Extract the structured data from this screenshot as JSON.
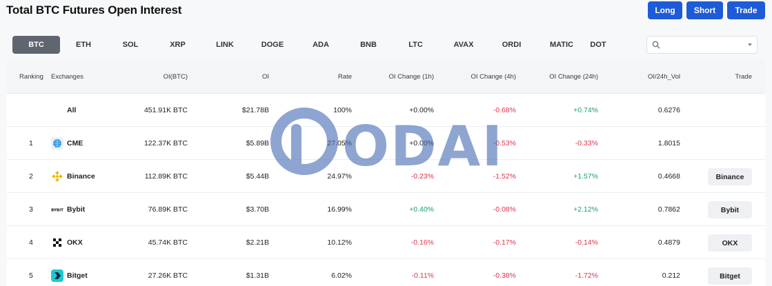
{
  "header": {
    "title": "Total BTC Futures Open Interest",
    "buttons": {
      "long": "Long",
      "short": "Short",
      "trade": "Trade"
    },
    "accent_color": "#1e5bd8"
  },
  "coin_tabs": [
    {
      "label": "BTC",
      "active": true
    },
    {
      "label": "ETH"
    },
    {
      "label": "SOL"
    },
    {
      "label": "XRP"
    },
    {
      "label": "LINK"
    },
    {
      "label": "DOGE"
    },
    {
      "label": "ADA"
    },
    {
      "label": "BNB"
    },
    {
      "label": "LTC"
    },
    {
      "label": "AVAX"
    },
    {
      "label": "ORDI"
    },
    {
      "label": "MATIC"
    },
    {
      "label": "DOT"
    }
  ],
  "search": {
    "value": "",
    "placeholder": ""
  },
  "table": {
    "columns": [
      "Ranking",
      "Exchanges",
      "OI(BTC)",
      "OI",
      "Rate",
      "OI Change (1h)",
      "OI Change (4h)",
      "OI Change (24h)",
      "OI/24h_Vol",
      "Trade"
    ],
    "rows": [
      {
        "rank": "",
        "exchange": "All",
        "icon": "",
        "oi_btc": "451.91K BTC",
        "oi": "$21.78B",
        "rate": "100%",
        "ch1h": "+0.00%",
        "ch1h_dir": "neutral",
        "ch4h": "-0.68%",
        "ch4h_dir": "down",
        "ch24h": "+0.74%",
        "ch24h_dir": "up",
        "vol": "0.6276",
        "trade": ""
      },
      {
        "rank": "1",
        "exchange": "CME",
        "icon": "cme-icon",
        "oi_btc": "122.37K BTC",
        "oi": "$5.89B",
        "rate": "27.05%",
        "ch1h": "+0.00%",
        "ch1h_dir": "neutral",
        "ch4h": "-0.53%",
        "ch4h_dir": "down",
        "ch24h": "-0.33%",
        "ch24h_dir": "down",
        "vol": "1.8015",
        "trade": ""
      },
      {
        "rank": "2",
        "exchange": "Binance",
        "icon": "binance-icon",
        "oi_btc": "112.89K BTC",
        "oi": "$5.44B",
        "rate": "24.97%",
        "ch1h": "-0.23%",
        "ch1h_dir": "down",
        "ch4h": "-1.52%",
        "ch4h_dir": "down",
        "ch24h": "+1.57%",
        "ch24h_dir": "up",
        "vol": "0.4668",
        "trade": "Binance"
      },
      {
        "rank": "3",
        "exchange": "Bybit",
        "icon": "bybit-icon",
        "oi_btc": "76.89K BTC",
        "oi": "$3.70B",
        "rate": "16.99%",
        "ch1h": "+0.40%",
        "ch1h_dir": "up",
        "ch4h": "-0.08%",
        "ch4h_dir": "down",
        "ch24h": "+2.12%",
        "ch24h_dir": "up",
        "vol": "0.7862",
        "trade": "Bybit"
      },
      {
        "rank": "4",
        "exchange": "OKX",
        "icon": "okx-icon",
        "oi_btc": "45.74K BTC",
        "oi": "$2.21B",
        "rate": "10.12%",
        "ch1h": "-0.16%",
        "ch1h_dir": "down",
        "ch4h": "-0.17%",
        "ch4h_dir": "down",
        "ch24h": "-0.14%",
        "ch24h_dir": "down",
        "vol": "0.4879",
        "trade": "OKX"
      },
      {
        "rank": "5",
        "exchange": "Bitget",
        "icon": "bitget-icon",
        "oi_btc": "27.26K BTC",
        "oi": "$1.31B",
        "rate": "6.02%",
        "ch1h": "-0.11%",
        "ch1h_dir": "down",
        "ch4h": "-0.38%",
        "ch4h_dir": "down",
        "ch24h": "-1.72%",
        "ch24h_dir": "down",
        "vol": "0.212",
        "trade": "Bitget"
      }
    ]
  },
  "colors": {
    "up": "#1aa06d",
    "down": "#e0334a",
    "watermark": "#4a6fb5"
  },
  "watermark": {
    "text": "ODAILY"
  }
}
